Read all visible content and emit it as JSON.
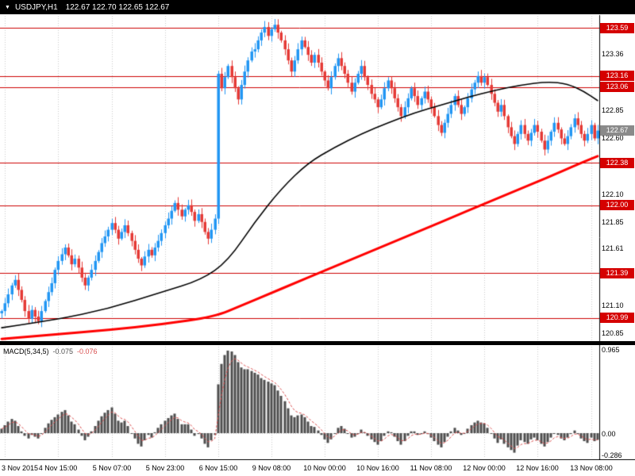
{
  "title_bar": {
    "collapse_icon": "▼",
    "symbol": "USDJPY,H1",
    "ohlc": "122.67 122.70 122.65 122.67"
  },
  "colors": {
    "up": "#2196f3",
    "down": "#e53935",
    "ma_fast": "#000000",
    "ma_slow": "#ff0000",
    "level_line": "#cc0000",
    "badge_bg": "#d50000",
    "current_badge_bg": "#8a8a8a",
    "histogram": "#4d4d4d",
    "signal": "#d94f4f",
    "grid": "#c9c9c9"
  },
  "price_axis": {
    "plain_labels": [
      "123.36",
      "122.85",
      "122.60",
      "122.10",
      "121.85",
      "121.61",
      "121.10",
      "120.85"
    ],
    "level_badges": [
      "123.59",
      "123.16",
      "123.06",
      "122.38",
      "122.00",
      "121.39",
      "120.99"
    ],
    "current_price": "122.67"
  },
  "time_axis": {
    "labels": [
      "3 Nov 2015",
      "4 Nov 15:00",
      "5 Nov 07:00",
      "5 Nov 23:00",
      "6 Nov 15:00",
      "9 Nov 08:00",
      "10 Nov 00:00",
      "10 Nov 16:00",
      "11 Nov 08:00",
      "12 Nov 00:00",
      "12 Nov 16:00",
      "13 Nov 08:00"
    ]
  },
  "macd_panel": {
    "label": "MACD(5,34,5)",
    "value": "-0.075",
    "signal_value": "-0.076",
    "axis_labels": [
      "0.965",
      "0.00",
      "-0.286"
    ]
  },
  "chart_data": {
    "type": "candlestick",
    "symbol": "USDJPY",
    "timeframe": "H1",
    "bar_count": 180,
    "x_ticks": {
      "bar_indexes": [
        1,
        17,
        33,
        49,
        65,
        81,
        97,
        113,
        129,
        145,
        161,
        177
      ],
      "labels": [
        "3 Nov 2015",
        "4 Nov 15:00",
        "5 Nov 07:00",
        "5 Nov 23:00",
        "6 Nov 15:00",
        "9 Nov 08:00",
        "10 Nov 00:00",
        "10 Nov 16:00",
        "11 Nov 08:00",
        "12 Nov 00:00",
        "12 Nov 16:00",
        "13 Nov 08:00"
      ]
    },
    "main": {
      "ylim": [
        120.78,
        123.7
      ],
      "levels": [
        123.59,
        123.16,
        123.06,
        122.38,
        122.0,
        121.39,
        120.99
      ],
      "wick_amplitude": 0.055,
      "closes": [
        121.05,
        121.12,
        121.2,
        121.28,
        121.33,
        121.24,
        121.15,
        121.05,
        120.98,
        121.06,
        121.0,
        120.96,
        121.05,
        121.14,
        121.22,
        121.3,
        121.42,
        121.5,
        121.56,
        121.62,
        121.55,
        121.47,
        121.52,
        121.44,
        121.35,
        121.28,
        121.35,
        121.42,
        121.5,
        121.58,
        121.66,
        121.72,
        121.78,
        121.84,
        121.78,
        121.7,
        121.76,
        121.82,
        121.75,
        121.68,
        121.6,
        121.52,
        121.46,
        121.54,
        121.6,
        121.55,
        121.62,
        121.68,
        121.75,
        121.82,
        121.88,
        121.95,
        122.02,
        121.96,
        121.9,
        121.96,
        122.0,
        121.94,
        121.86,
        121.92,
        121.85,
        121.76,
        121.7,
        121.78,
        121.88,
        123.18,
        123.05,
        123.15,
        123.25,
        123.15,
        123.05,
        122.95,
        123.08,
        123.2,
        123.3,
        123.38,
        123.4,
        123.48,
        123.55,
        123.6,
        123.52,
        123.58,
        123.62,
        123.55,
        123.48,
        123.4,
        123.3,
        123.2,
        123.3,
        123.4,
        123.48,
        123.42,
        123.35,
        123.28,
        123.35,
        123.28,
        123.2,
        123.12,
        123.05,
        123.15,
        123.25,
        123.32,
        123.25,
        123.18,
        123.1,
        123.02,
        123.1,
        123.18,
        123.25,
        123.15,
        123.08,
        123.0,
        122.95,
        122.88,
        122.95,
        123.05,
        123.12,
        123.05,
        122.96,
        122.88,
        122.8,
        122.88,
        122.96,
        123.05,
        122.98,
        122.9,
        122.96,
        123.02,
        122.95,
        122.88,
        122.8,
        122.72,
        122.65,
        122.74,
        122.82,
        122.9,
        122.98,
        122.9,
        122.82,
        122.88,
        122.96,
        123.04,
        123.1,
        123.16,
        123.1,
        123.15,
        123.08,
        123.0,
        122.92,
        122.84,
        122.9,
        122.8,
        122.7,
        122.62,
        122.55,
        122.64,
        122.72,
        122.64,
        122.58,
        122.65,
        122.72,
        122.66,
        122.58,
        122.5,
        122.58,
        122.66,
        122.74,
        122.68,
        122.6,
        122.55,
        122.62,
        122.7,
        122.78,
        122.72,
        122.64,
        122.58,
        122.64,
        122.72,
        122.6,
        122.67
      ],
      "ma_fast_points": [
        [
          0,
          120.9
        ],
        [
          16,
          120.97
        ],
        [
          32,
          121.07
        ],
        [
          48,
          121.22
        ],
        [
          60,
          121.33
        ],
        [
          68,
          121.5
        ],
        [
          76,
          121.85
        ],
        [
          84,
          122.15
        ],
        [
          92,
          122.38
        ],
        [
          100,
          122.52
        ],
        [
          108,
          122.64
        ],
        [
          116,
          122.74
        ],
        [
          124,
          122.83
        ],
        [
          132,
          122.9
        ],
        [
          140,
          122.97
        ],
        [
          148,
          123.03
        ],
        [
          156,
          123.08
        ],
        [
          164,
          123.11
        ],
        [
          170,
          123.09
        ],
        [
          175,
          123.02
        ],
        [
          179,
          122.94
        ]
      ],
      "ma_slow_points": [
        [
          0,
          120.8
        ],
        [
          16,
          120.84
        ],
        [
          32,
          120.88
        ],
        [
          48,
          120.93
        ],
        [
          64,
          121.0
        ],
        [
          72,
          121.1
        ],
        [
          80,
          121.2
        ],
        [
          88,
          121.3
        ],
        [
          96,
          121.4
        ],
        [
          104,
          121.5
        ],
        [
          112,
          121.6
        ],
        [
          120,
          121.7
        ],
        [
          128,
          121.8
        ],
        [
          136,
          121.9
        ],
        [
          144,
          122.0
        ],
        [
          152,
          122.1
        ],
        [
          160,
          122.2
        ],
        [
          168,
          122.3
        ],
        [
          174,
          122.38
        ],
        [
          179,
          122.44
        ]
      ]
    },
    "macd": {
      "params": [
        5,
        34,
        5
      ],
      "ylim": [
        -0.286,
        0.965
      ],
      "last_value": -0.075,
      "last_signal": -0.076,
      "values": [
        0.05,
        0.09,
        0.13,
        0.16,
        0.14,
        0.08,
        0.02,
        -0.03,
        -0.06,
        -0.02,
        -0.04,
        -0.06,
        0.0,
        0.06,
        0.11,
        0.15,
        0.18,
        0.21,
        0.24,
        0.26,
        0.2,
        0.13,
        0.1,
        0.04,
        -0.03,
        -0.08,
        -0.04,
        0.02,
        0.08,
        0.14,
        0.19,
        0.23,
        0.26,
        0.29,
        0.22,
        0.14,
        0.12,
        0.14,
        0.08,
        0.0,
        -0.06,
        -0.12,
        -0.15,
        -0.08,
        -0.02,
        -0.05,
        0.01,
        0.06,
        0.1,
        0.14,
        0.17,
        0.2,
        0.22,
        0.16,
        0.1,
        0.1,
        0.1,
        0.04,
        -0.03,
        -0.01,
        -0.06,
        -0.12,
        -0.16,
        -0.08,
        -0.02,
        0.55,
        0.78,
        0.88,
        0.93,
        0.92,
        0.88,
        0.8,
        0.74,
        0.72,
        0.72,
        0.7,
        0.68,
        0.66,
        0.62,
        0.6,
        0.58,
        0.56,
        0.54,
        0.48,
        0.42,
        0.36,
        0.28,
        0.2,
        0.18,
        0.2,
        0.21,
        0.18,
        0.13,
        0.08,
        0.07,
        0.03,
        -0.02,
        -0.07,
        -0.11,
        -0.07,
        0.0,
        0.06,
        0.08,
        0.05,
        0.0,
        -0.05,
        -0.04,
        0.0,
        0.04,
        0.01,
        -0.03,
        -0.07,
        -0.1,
        -0.13,
        -0.09,
        -0.03,
        0.02,
        0.01,
        -0.04,
        -0.09,
        -0.13,
        -0.09,
        -0.03,
        0.02,
        0.02,
        -0.02,
        -0.01,
        0.02,
        -0.01,
        -0.05,
        -0.09,
        -0.13,
        -0.16,
        -0.1,
        -0.04,
        0.02,
        0.06,
        0.03,
        -0.02,
        0.0,
        0.05,
        0.09,
        0.12,
        0.14,
        0.12,
        0.11,
        0.06,
        0.0,
        -0.06,
        -0.11,
        -0.07,
        -0.12,
        -0.16,
        -0.19,
        -0.22,
        -0.14,
        -0.08,
        -0.1,
        -0.12,
        -0.07,
        -0.05,
        -0.08,
        -0.12,
        -0.15,
        -0.1,
        -0.05,
        0.0,
        -0.02,
        -0.06,
        -0.08,
        -0.05,
        -0.01,
        0.03,
        -0.01,
        -0.06,
        -0.09,
        -0.11,
        -0.05,
        -0.09,
        -0.075
      ]
    }
  }
}
